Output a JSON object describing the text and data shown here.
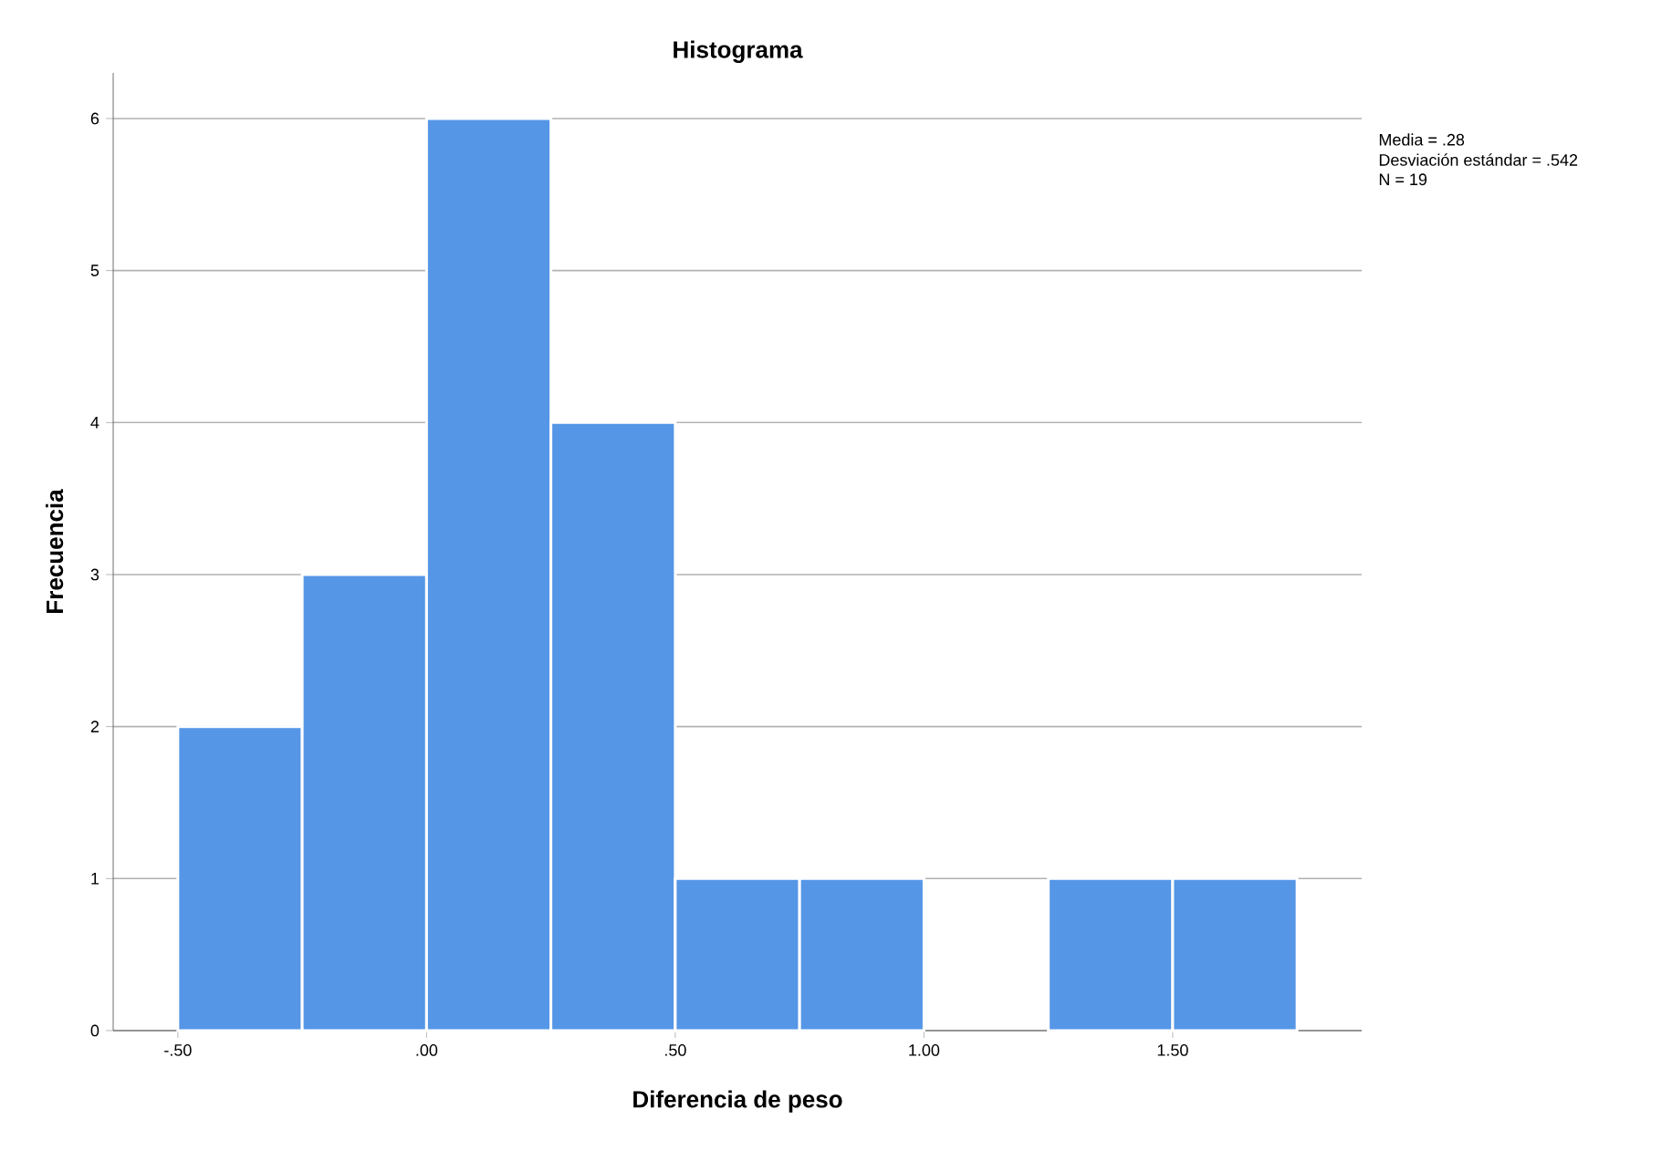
{
  "chart_data": {
    "type": "histogram",
    "title": "Histograma",
    "xlabel": "Diferencia de peso",
    "ylabel": "Frecuencia",
    "bins": [
      -0.5,
      -0.25,
      0,
      0.25,
      0.5,
      0.75,
      1.0,
      1.25,
      1.5,
      1.75
    ],
    "values": [
      2,
      3,
      6,
      4,
      1,
      1,
      0,
      1,
      1
    ],
    "color": "#5596e6",
    "xlim": [
      -0.63,
      1.88
    ],
    "ylim": [
      0,
      6.3
    ],
    "xticks": [
      {
        "value": -0.5,
        "label": "-.50"
      },
      {
        "value": 0,
        "label": ".00"
      },
      {
        "value": 0.5,
        "label": ".50"
      },
      {
        "value": 1.0,
        "label": "1.00"
      },
      {
        "value": 1.5,
        "label": "1.50"
      }
    ],
    "yticks": [
      0,
      1,
      2,
      3,
      4,
      5,
      6
    ],
    "grid": "y",
    "annotations": [
      "Media = .28",
      "Desviación estándar = .542",
      "N = 19"
    ]
  }
}
